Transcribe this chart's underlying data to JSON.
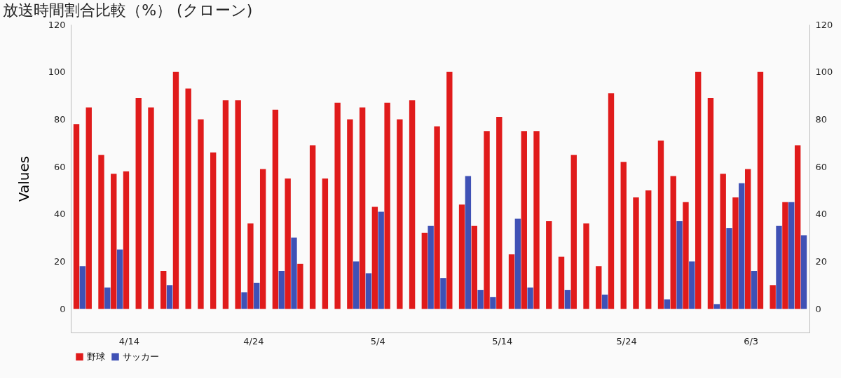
{
  "chart_data": {
    "type": "bar",
    "title": "放送時間割合比較（%） (クローン)",
    "ylabel": "Values",
    "categories": [
      null,
      null,
      null,
      null,
      "4/14",
      null,
      null,
      null,
      null,
      null,
      null,
      null,
      null,
      null,
      "4/24",
      null,
      null,
      null,
      null,
      null,
      null,
      null,
      null,
      null,
      "5/4",
      null,
      null,
      null,
      null,
      null,
      null,
      null,
      null,
      null,
      "5/14",
      null,
      null,
      null,
      null,
      null,
      null,
      null,
      null,
      null,
      "5/24",
      null,
      null,
      null,
      null,
      null,
      null,
      null,
      null,
      null,
      "6/3",
      null,
      null,
      null,
      null
    ],
    "series": [
      {
        "name": "野球",
        "color": "#e01b1b",
        "values": [
          78,
          85,
          65,
          57,
          58,
          89,
          85,
          16,
          100,
          93,
          80,
          66,
          88,
          88,
          36,
          59,
          84,
          55,
          19,
          69,
          55,
          87,
          80,
          85,
          43,
          87,
          80,
          88,
          32,
          77,
          100,
          44,
          35,
          75,
          81,
          23,
          75,
          75,
          37,
          22,
          65,
          36,
          18,
          91,
          62,
          47,
          50,
          71,
          56,
          45,
          100,
          89,
          57,
          47,
          59,
          100,
          10,
          45,
          69
        ]
      },
      {
        "name": "サッカー",
        "color": "#3f51b5",
        "values": [
          18,
          null,
          9,
          25,
          null,
          null,
          null,
          10,
          null,
          null,
          null,
          null,
          null,
          7,
          11,
          null,
          16,
          30,
          null,
          null,
          null,
          null,
          20,
          15,
          41,
          null,
          null,
          null,
          35,
          13,
          null,
          56,
          8,
          5,
          null,
          38,
          9,
          null,
          null,
          8,
          null,
          null,
          6,
          null,
          null,
          null,
          null,
          4,
          37,
          20,
          null,
          2,
          34,
          53,
          16,
          null,
          35,
          45,
          31
        ]
      }
    ],
    "ylim": [
      -10,
      120
    ],
    "yticks": [
      0,
      20,
      40,
      60,
      80,
      100,
      120
    ],
    "y2lim": [
      -10,
      120
    ],
    "y2ticks": [
      0,
      20,
      40,
      60,
      80,
      100,
      120
    ],
    "grid": false,
    "legend": "bottom left"
  }
}
